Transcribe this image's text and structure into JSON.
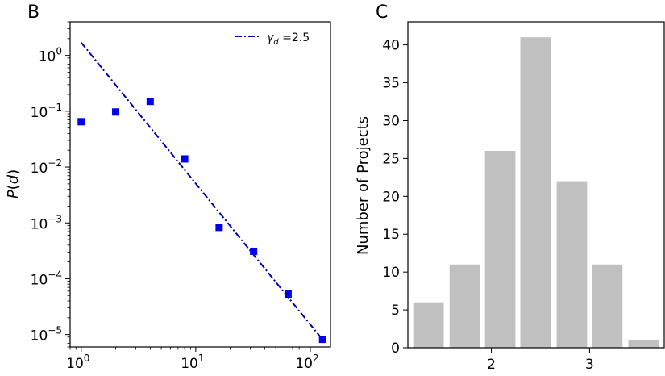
{
  "chart_data": [
    {
      "panel": "B",
      "type": "scatter",
      "xscale": "log",
      "yscale": "log",
      "xlim": [
        0.8,
        150
      ],
      "ylim": [
        6e-06,
        4
      ],
      "xticks": [
        {
          "value": 1,
          "base": "10",
          "exp": "0"
        },
        {
          "value": 10,
          "base": "10",
          "exp": "1"
        },
        {
          "value": 100,
          "base": "10",
          "exp": "2"
        }
      ],
      "yticks": [
        {
          "value": 1,
          "base": "10",
          "exp": "0"
        },
        {
          "value": 0.1,
          "base": "10",
          "exp": "−1"
        },
        {
          "value": 0.01,
          "base": "10",
          "exp": "−2"
        },
        {
          "value": 0.001,
          "base": "10",
          "exp": "−3"
        },
        {
          "value": 0.0001,
          "base": "10",
          "exp": "−4"
        },
        {
          "value": 1e-05,
          "base": "10",
          "exp": "−5"
        }
      ],
      "ylabel": "P(d)",
      "xlabel": "",
      "points": [
        {
          "x": 1,
          "y": 0.065
        },
        {
          "x": 2,
          "y": 0.097
        },
        {
          "x": 4,
          "y": 0.15
        },
        {
          "x": 8,
          "y": 0.014
        },
        {
          "x": 16,
          "y": 0.00083
        },
        {
          "x": 32,
          "y": 0.00031
        },
        {
          "x": 64,
          "y": 5.3e-05
        },
        {
          "x": 128,
          "y": 8.2e-06
        }
      ],
      "point_color": "#0000ee",
      "fit_line": {
        "x": [
          1,
          128
        ],
        "y": [
          1.7,
          8.1e-06
        ],
        "color": "#0000aa",
        "style": "dashdot",
        "legend": {
          "symbol": "γ",
          "subscript": "d",
          "text": " =2.5"
        }
      },
      "legend_position": "top-right"
    },
    {
      "panel": "C",
      "type": "bar",
      "categories": [
        1.36,
        1.73,
        2.09,
        2.45,
        2.82,
        3.18,
        3.55
      ],
      "values": [
        6,
        11,
        26,
        41,
        22,
        11,
        1
      ],
      "bar_width": 0.31,
      "bar_color": "#c0c0c0",
      "xlim": [
        1.15,
        3.76
      ],
      "ylim": [
        0,
        43.05
      ],
      "xticks": [
        2,
        3
      ],
      "xtick_labels": [
        "2",
        "3"
      ],
      "yticks": [
        0,
        5,
        10,
        15,
        20,
        25,
        30,
        35,
        40
      ],
      "ytick_labels": [
        "0",
        "5",
        "10",
        "15",
        "20",
        "25",
        "30",
        "35",
        "40"
      ],
      "ylabel": "Number of Projects",
      "xlabel": ""
    }
  ]
}
